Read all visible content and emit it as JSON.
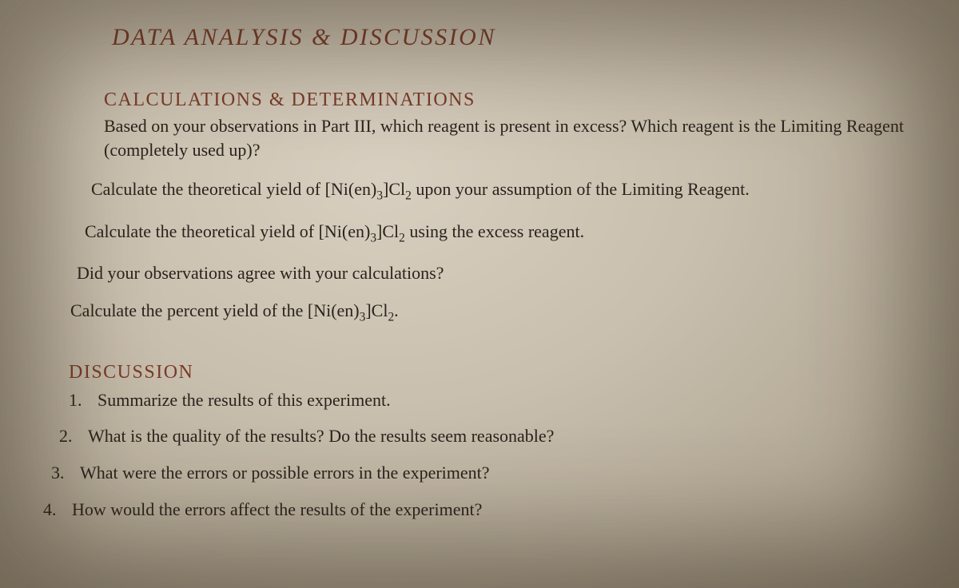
{
  "styling": {
    "background_gradient": [
      "#d8cfc0",
      "#c9bfae",
      "#b5ab98",
      "#9a907d"
    ],
    "heading_color": "#7a3a28",
    "body_color": "#2a231c",
    "title_fontsize": 30,
    "section_fontsize": 24,
    "body_fontsize": 22,
    "font_family": "Garamond / Georgia serif",
    "title_letter_spacing": 2.5,
    "section_letter_spacing": 1.5
  },
  "title": "DATA ANALYSIS & DISCUSSION",
  "calc": {
    "heading": "CALCULATIONS & DETERMINATIONS",
    "p1": "Based on your observations in Part III, which reagent is present in excess? Which reagent is the Limiting Reagent (completely used up)?",
    "p2_pre": "Calculate the theoretical yield of [Ni(en)",
    "p2_sub1": "3",
    "p2_mid": "]Cl",
    "p2_sub2": "2",
    "p2_post": " upon your assumption of the Limiting Reagent.",
    "p3_pre": "Calculate the theoretical yield of [Ni(en)",
    "p3_sub1": "3",
    "p3_mid": "]Cl",
    "p3_sub2": "2",
    "p3_post": " using the excess reagent.",
    "p4": "Did your observations agree with your calculations?",
    "p5_pre": "Calculate the percent yield of the [Ni(en)",
    "p5_sub1": "3",
    "p5_mid": "]Cl",
    "p5_sub2": "2",
    "p5_post": "."
  },
  "discussion": {
    "heading": "DISCUSSION",
    "items": [
      {
        "num": "1.",
        "text": "Summarize the results of this experiment."
      },
      {
        "num": "2.",
        "text": "What is the quality of the results? Do the results seem reasonable?"
      },
      {
        "num": "3.",
        "text": "What were the errors or possible errors in the experiment?"
      },
      {
        "num": "4.",
        "text": "How would the errors affect the results of the experiment?"
      }
    ]
  }
}
